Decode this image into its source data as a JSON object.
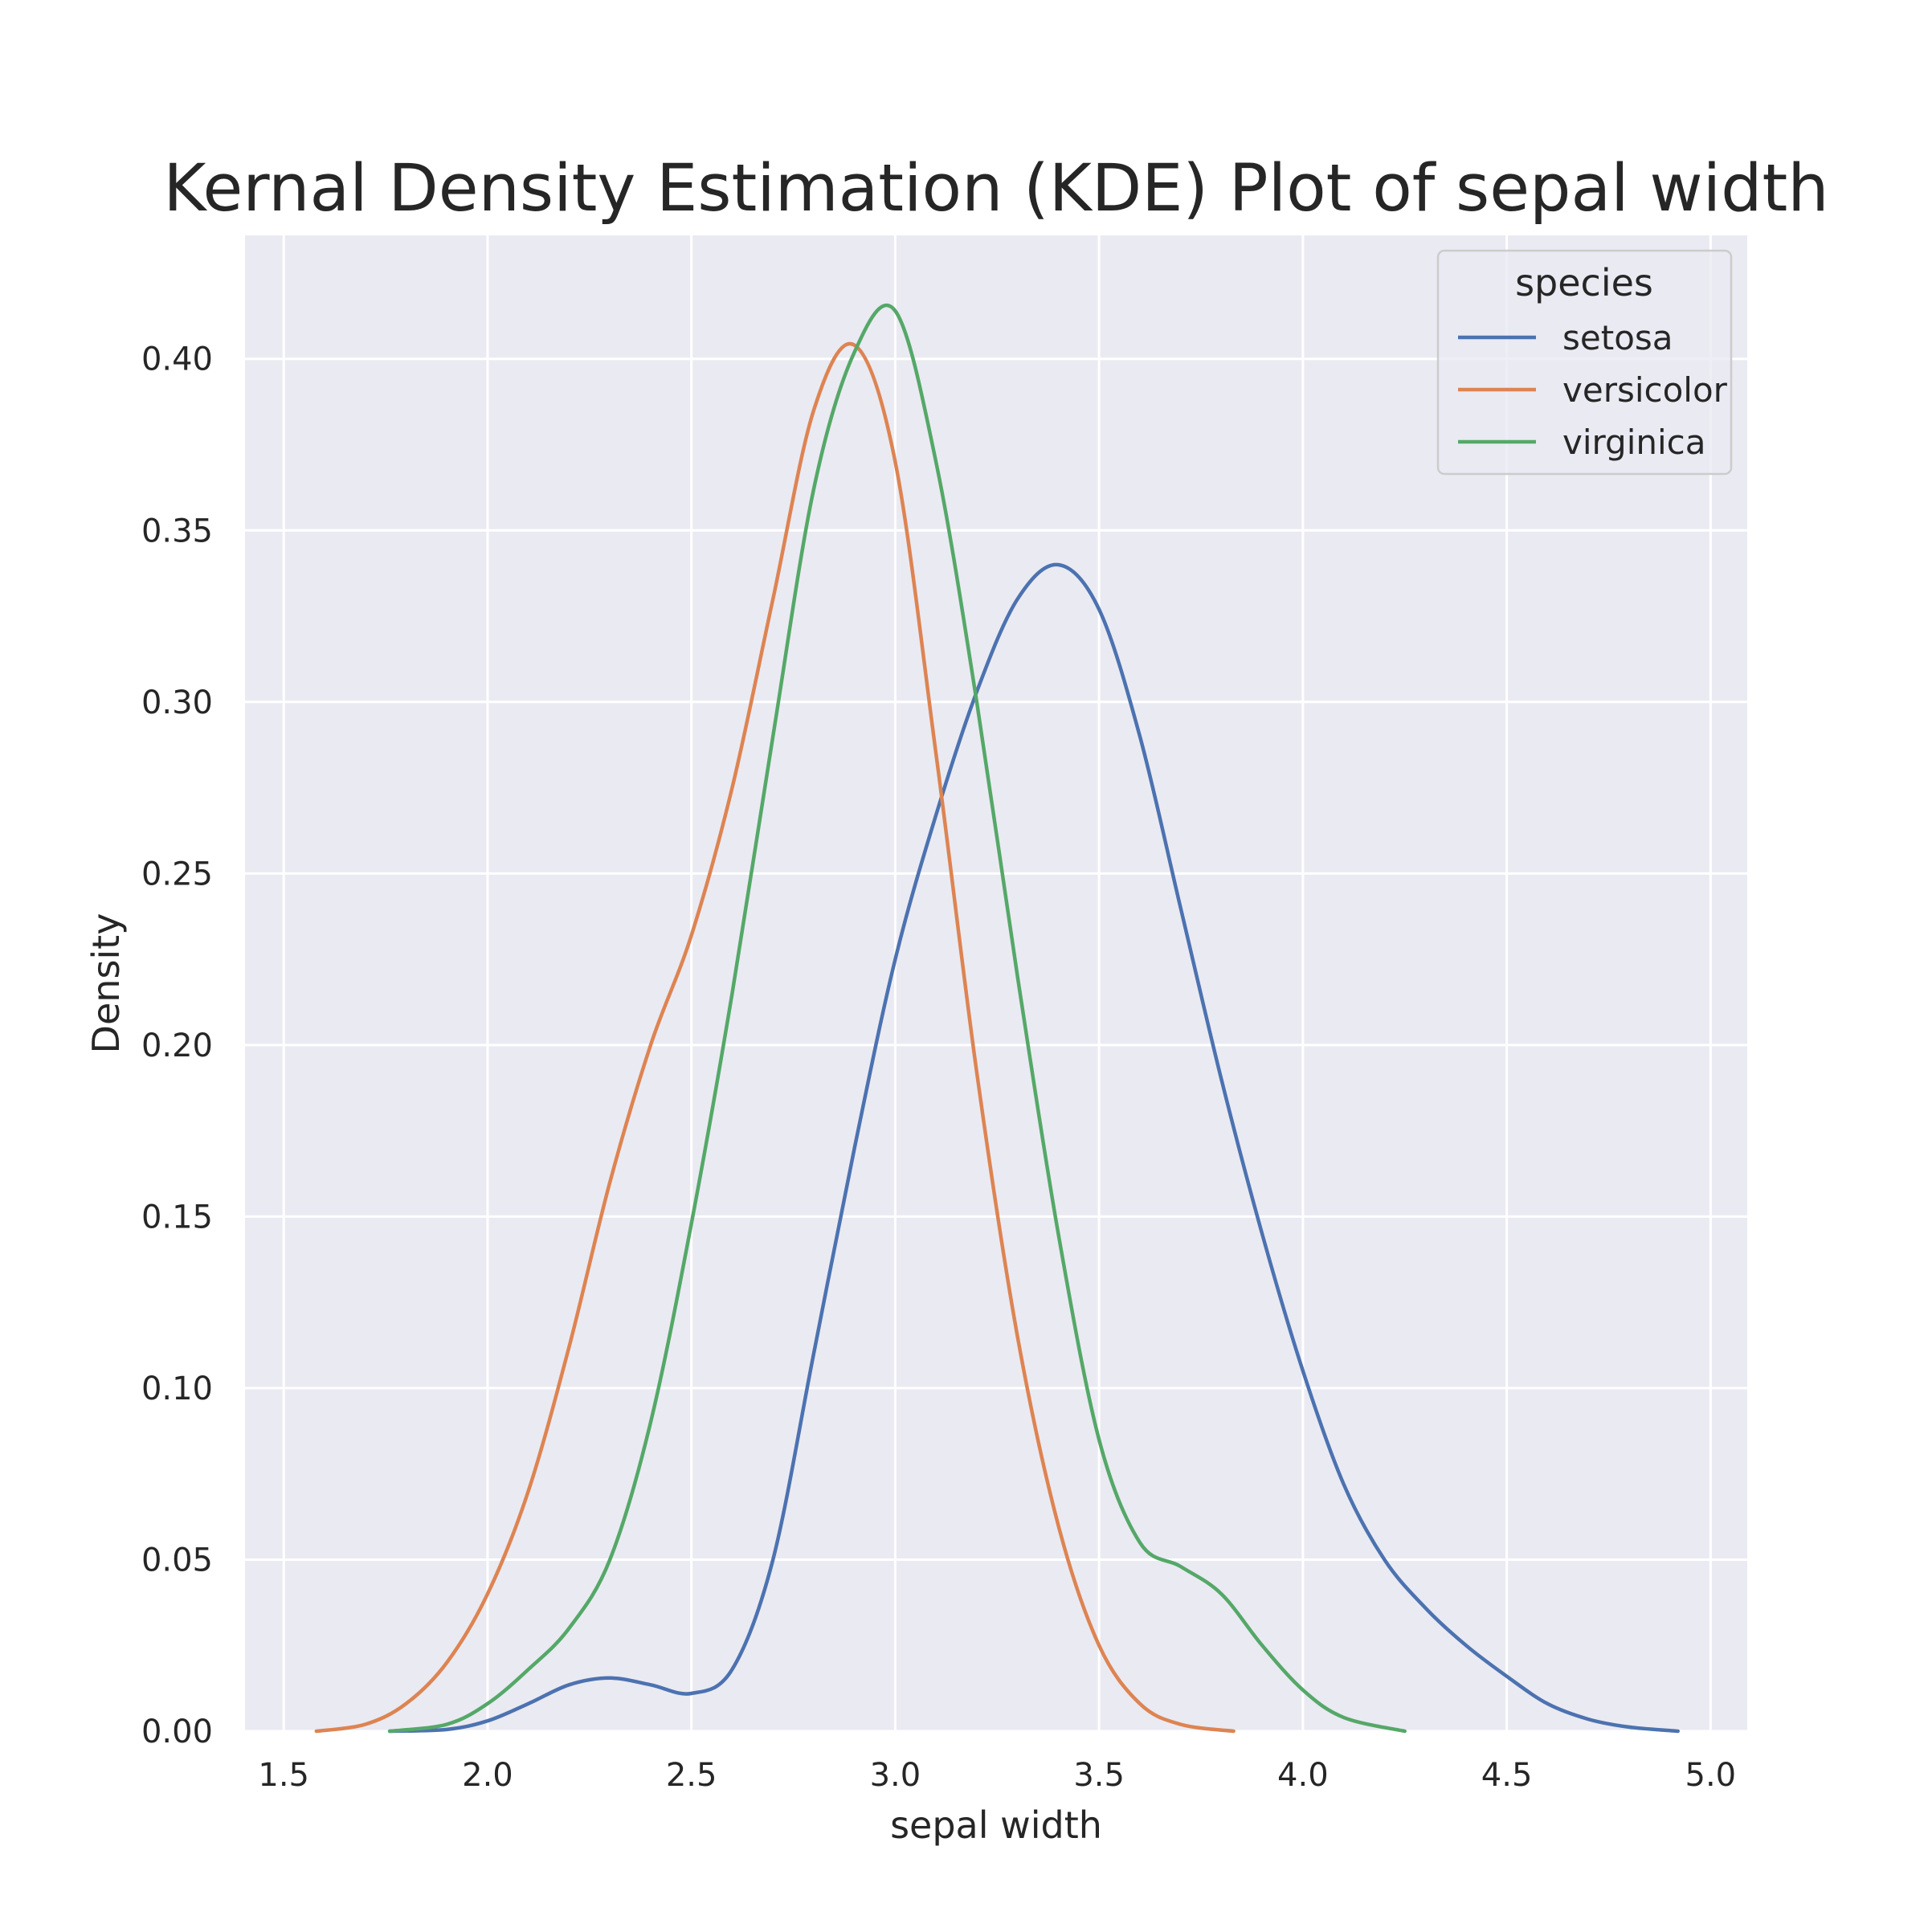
{
  "chart_data": {
    "type": "line",
    "title": "Kernal Density Estimation (KDE) Plot of sepal width",
    "xlabel": "sepal width",
    "ylabel": "Density",
    "xlim": [
      1.405,
      5.09
    ],
    "ylim": [
      0,
      0.436
    ],
    "xticks": [
      1.5,
      2.0,
      2.5,
      3.0,
      3.5,
      4.0,
      4.5,
      5.0
    ],
    "xtick_labels": [
      "1.5",
      "2.0",
      "2.5",
      "3.0",
      "3.5",
      "4.0",
      "4.5",
      "5.0"
    ],
    "yticks": [
      0,
      0.05,
      0.1,
      0.15,
      0.2,
      0.25,
      0.3,
      0.35,
      0.4
    ],
    "ytick_labels": [
      "0.00",
      "0.05",
      "0.10",
      "0.15",
      "0.20",
      "0.25",
      "0.30",
      "0.35",
      "0.40"
    ],
    "grid": true,
    "background": "#eaeaf2",
    "legend": {
      "title": "species",
      "placement": "top-right"
    },
    "series": [
      {
        "name": "setosa",
        "color": "#4c72b0",
        "points": [
          [
            1.76,
            0.0
          ],
          [
            1.9,
            0.0005
          ],
          [
            2.0,
            0.003
          ],
          [
            2.1,
            0.008
          ],
          [
            2.2,
            0.0135
          ],
          [
            2.3,
            0.0155
          ],
          [
            2.4,
            0.0135
          ],
          [
            2.5,
            0.011
          ],
          [
            2.6,
            0.018
          ],
          [
            2.7,
            0.05
          ],
          [
            2.8,
            0.11
          ],
          [
            2.9,
            0.17
          ],
          [
            3.0,
            0.225
          ],
          [
            3.1,
            0.267
          ],
          [
            3.2,
            0.303
          ],
          [
            3.3,
            0.33
          ],
          [
            3.4,
            0.34
          ],
          [
            3.5,
            0.327
          ],
          [
            3.6,
            0.29
          ],
          [
            3.7,
            0.24
          ],
          [
            3.8,
            0.19
          ],
          [
            3.9,
            0.145
          ],
          [
            4.0,
            0.105
          ],
          [
            4.1,
            0.072
          ],
          [
            4.2,
            0.05
          ],
          [
            4.3,
            0.036
          ],
          [
            4.4,
            0.025
          ],
          [
            4.5,
            0.016
          ],
          [
            4.6,
            0.008
          ],
          [
            4.7,
            0.0035
          ],
          [
            4.8,
            0.0012
          ],
          [
            4.92,
            0.0
          ]
        ]
      },
      {
        "name": "versicolor",
        "color": "#dd8452",
        "points": [
          [
            1.58,
            0.0
          ],
          [
            1.7,
            0.002
          ],
          [
            1.8,
            0.008
          ],
          [
            1.9,
            0.02
          ],
          [
            2.0,
            0.04
          ],
          [
            2.1,
            0.07
          ],
          [
            2.2,
            0.112
          ],
          [
            2.3,
            0.16
          ],
          [
            2.4,
            0.2
          ],
          [
            2.5,
            0.232
          ],
          [
            2.6,
            0.275
          ],
          [
            2.7,
            0.33
          ],
          [
            2.8,
            0.385
          ],
          [
            2.9,
            0.404
          ],
          [
            3.0,
            0.37
          ],
          [
            3.1,
            0.285
          ],
          [
            3.2,
            0.192
          ],
          [
            3.3,
            0.115
          ],
          [
            3.4,
            0.06
          ],
          [
            3.5,
            0.025
          ],
          [
            3.6,
            0.008
          ],
          [
            3.7,
            0.002
          ],
          [
            3.83,
            0.0
          ]
        ]
      },
      {
        "name": "virginica",
        "color": "#55a868",
        "points": [
          [
            1.76,
            0.0
          ],
          [
            1.9,
            0.002
          ],
          [
            2.0,
            0.008
          ],
          [
            2.1,
            0.018
          ],
          [
            2.2,
            0.03
          ],
          [
            2.3,
            0.05
          ],
          [
            2.4,
            0.09
          ],
          [
            2.5,
            0.148
          ],
          [
            2.6,
            0.215
          ],
          [
            2.7,
            0.29
          ],
          [
            2.8,
            0.362
          ],
          [
            2.9,
            0.402
          ],
          [
            3.0,
            0.414
          ],
          [
            3.1,
            0.37
          ],
          [
            3.2,
            0.3
          ],
          [
            3.3,
            0.22
          ],
          [
            3.4,
            0.145
          ],
          [
            3.5,
            0.085
          ],
          [
            3.6,
            0.055
          ],
          [
            3.7,
            0.048
          ],
          [
            3.8,
            0.04
          ],
          [
            3.9,
            0.025
          ],
          [
            4.0,
            0.012
          ],
          [
            4.1,
            0.004
          ],
          [
            4.25,
            0.0
          ]
        ]
      }
    ]
  }
}
